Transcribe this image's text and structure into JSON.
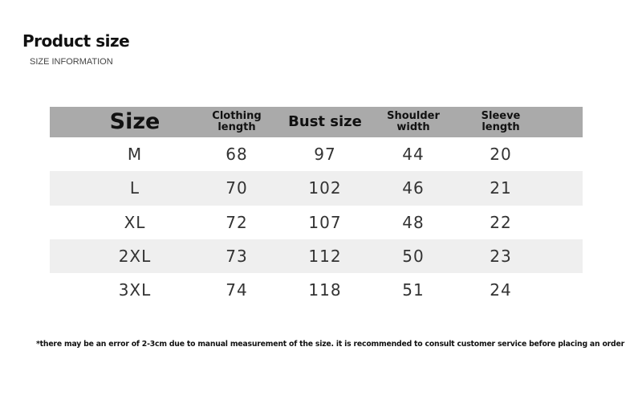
{
  "title": "Product size",
  "subtitle": "SIZE INFORMATION",
  "table": {
    "headers": [
      "Size",
      "Clothing length",
      "Bust size",
      "Shoulder width",
      "Sleeve length"
    ],
    "rows": [
      [
        "M",
        "68",
        "97",
        "44",
        "20"
      ],
      [
        "L",
        "70",
        "102",
        "46",
        "21"
      ],
      [
        "XL",
        "72",
        "107",
        "48",
        "22"
      ],
      [
        "2XL",
        "73",
        "112",
        "50",
        "23"
      ],
      [
        "3XL",
        "74",
        "118",
        "51",
        "24"
      ]
    ]
  },
  "note": "*there may be an error of 2-3cm due to manual measurement of the size. it is recommended to consult customer service before placing an order",
  "colors": {
    "header_bg": "#aaaaaa",
    "alt_row": "#efefef",
    "text": "#333333"
  }
}
